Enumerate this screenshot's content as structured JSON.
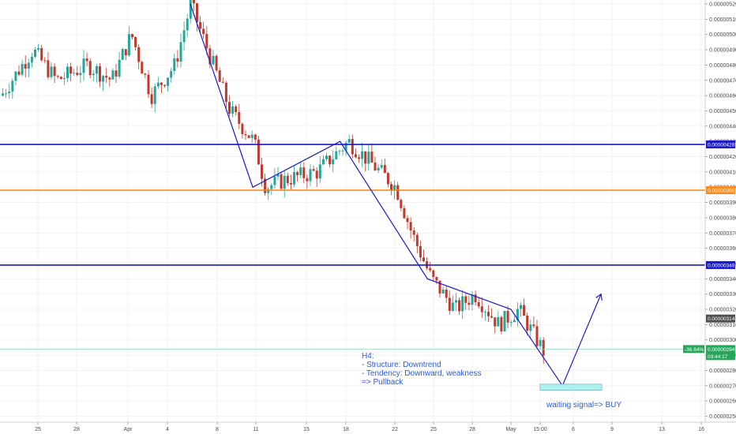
{
  "chart_data": {
    "type": "candlestick",
    "timeframe": "H4",
    "ylim": [
      2.49e-06,
      5.24e-06
    ],
    "y_ticks": [
      "0.00000520",
      "0.00000510",
      "0.00000500",
      "0.00000490",
      "0.00000480",
      "0.00000470",
      "0.00000460",
      "0.00000450",
      "0.00000440",
      "0.00000430",
      "0.00000420",
      "0.00000410",
      "0.00000400",
      "0.00000390",
      "0.00000380",
      "0.00000370",
      "0.00000360",
      "0.00000350",
      "0.00000340",
      "0.00000330",
      "0.00000320",
      "0.00000310",
      "0.00000300",
      "0.00000290",
      "0.00000280",
      "0.00000270",
      "0.00000260",
      "0.00000250"
    ],
    "x_ticks": [
      "25",
      "28",
      "Apr",
      "4",
      "8",
      "11",
      "15",
      "18",
      "22",
      "25",
      "28",
      "May",
      "15:00",
      "6",
      "9",
      "13",
      "16"
    ],
    "horizontal_levels": [
      {
        "label": "0.00000428",
        "color": "#1a1ac8"
      },
      {
        "label": "0.00000398",
        "color": "#ff8c1a"
      },
      {
        "label": "0.00000349",
        "color": "#1a1ac8"
      }
    ],
    "price_markers": [
      {
        "label": "0.00000314",
        "color": "#4d4d4d"
      },
      {
        "label": "0.00000294",
        "color": "#26a65b"
      }
    ],
    "current_change": "-36.64%",
    "countdown": "03:44:17",
    "trend_path": [
      {
        "date": "Apr 6",
        "price": 5.2e-06
      },
      {
        "date": "Apr 11",
        "price": 4e-06
      },
      {
        "date": "Apr 18",
        "price": 4.3e-06
      },
      {
        "date": "Apr 25",
        "price": 3.4e-06
      },
      {
        "date": "May 1",
        "price": 3.2e-06
      },
      {
        "date": "May 5",
        "price": 2.7e-06
      },
      {
        "date": "May 8",
        "price": 3.3e-06
      }
    ],
    "target_zone_price": [
      2.67e-06,
      2.71e-06
    ],
    "colors": {
      "up": "#26a69a",
      "down": "#c0392b",
      "trend": "#1a1ac8",
      "target_zone": "#aef0ef"
    }
  },
  "annotations": {
    "title": "H4:",
    "structure": "- Structure: Downtrend",
    "tendency": "- Tendency: Downward, weakness",
    "pullback": "=> Pullback",
    "signal": "waiting signal=> BUY"
  }
}
